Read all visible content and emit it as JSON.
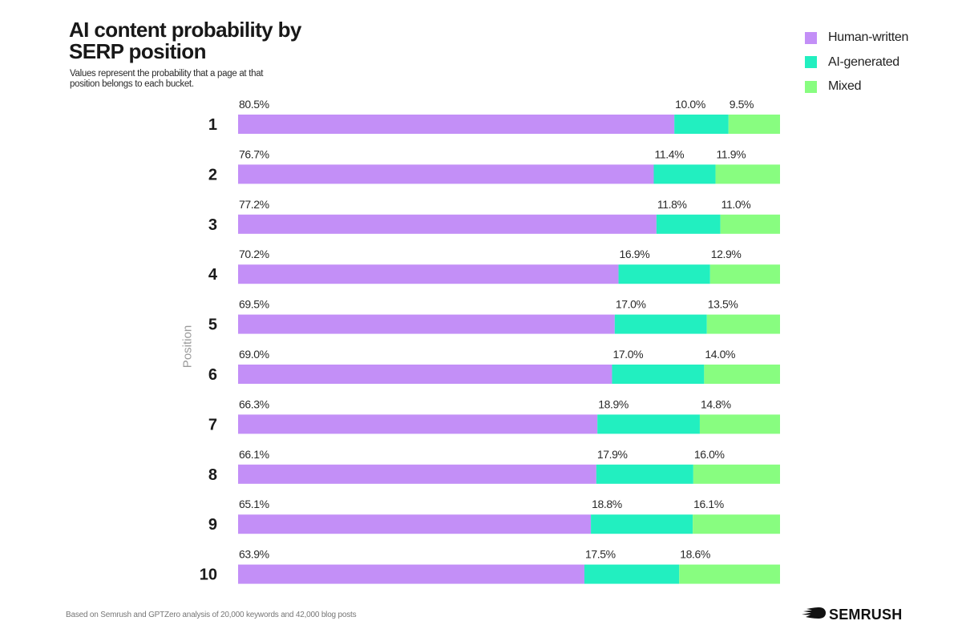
{
  "chart_data": {
    "type": "bar",
    "orientation": "horizontal",
    "stacked": true,
    "title": "AI content probability by SERP position",
    "subtitle": "Values represent the probability that a page at that position belongs to each bucket.",
    "xlabel": "",
    "ylabel": "Position",
    "xlim": [
      0,
      100
    ],
    "grid": false,
    "legend_position": "top-right",
    "categories": [
      "1",
      "2",
      "3",
      "4",
      "5",
      "6",
      "7",
      "8",
      "9",
      "10"
    ],
    "series": [
      {
        "name": "Human-written",
        "color": "#c38ff7",
        "values": [
          80.5,
          76.7,
          77.2,
          70.2,
          69.5,
          69.0,
          66.3,
          66.1,
          65.1,
          63.9
        ],
        "labels": [
          "80.5%",
          "76.7%",
          "77.2%",
          "70.2%",
          "69.5%",
          "69.0%",
          "66.3%",
          "66.1%",
          "65.1%",
          "63.9%"
        ]
      },
      {
        "name": "AI-generated",
        "color": "#22efc0",
        "values": [
          10.0,
          11.4,
          11.8,
          16.9,
          17.0,
          17.0,
          18.9,
          17.9,
          18.8,
          17.5
        ],
        "labels": [
          "10.0%",
          "11.4%",
          "11.8%",
          "16.9%",
          "17.0%",
          "17.0%",
          "18.9%",
          "17.9%",
          "18.8%",
          "17.5%"
        ]
      },
      {
        "name": "Mixed",
        "color": "#88fd80",
        "values": [
          9.5,
          11.9,
          11.0,
          12.9,
          13.5,
          14.0,
          14.8,
          16.0,
          16.1,
          18.6
        ],
        "labels": [
          "9.5%",
          "11.9%",
          "11.0%",
          "12.9%",
          "13.5%",
          "14.0%",
          "14.8%",
          "16.0%",
          "16.1%",
          "18.6%"
        ]
      }
    ]
  },
  "header": {
    "title": "AI content probability by SERP position",
    "subtitle": "Values represent the probability that a page at that position belongs to each bucket."
  },
  "legend": {
    "items": [
      {
        "label": "Human-written",
        "color": "#c38ff7"
      },
      {
        "label": "AI-generated",
        "color": "#22efc0"
      },
      {
        "label": "Mixed",
        "color": "#88fd80"
      }
    ]
  },
  "axis": {
    "ylabel": "Position"
  },
  "footer": {
    "note": "Based on Semrush and GPTZero analysis of 20,000 keywords and 42,000 blog posts",
    "brand": "SEMRUSH",
    "brand_icon": "semrush-fireball-icon"
  }
}
